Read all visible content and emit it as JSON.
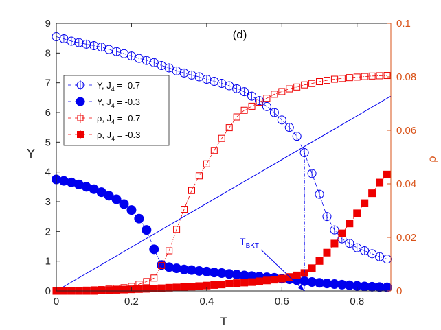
{
  "chart_data": {
    "type": "scatter",
    "panel_label": "(d)",
    "xlabel": "T",
    "ylabel_left": "Υ",
    "ylabel_right": "ρ",
    "xlim": [
      0,
      0.89
    ],
    "ylim_left": [
      0,
      9
    ],
    "ylim_right": [
      0,
      0.1
    ],
    "x_ticks": [
      0,
      0.2,
      0.4,
      0.6,
      0.8
    ],
    "x_tick_labels": [
      "0",
      "0.2",
      "0.4",
      "0.6",
      "0.8"
    ],
    "y_left_ticks": [
      0,
      1,
      2,
      3,
      4,
      5,
      6,
      7,
      8,
      9
    ],
    "y_left_tick_labels": [
      "0",
      "1",
      "2",
      "3",
      "4",
      "5",
      "6",
      "7",
      "8",
      "9"
    ],
    "y_right_ticks": [
      0,
      0.02,
      0.04,
      0.06,
      0.08,
      0.1
    ],
    "y_right_tick_labels": [
      "0",
      "0.02",
      "0.04",
      "0.06",
      "0.08",
      "0.1"
    ],
    "colors": {
      "blue": "#0000ee",
      "red": "#ee0000",
      "right_axis": "#d95319",
      "axis": "#262626"
    },
    "x": [
      0,
      0.02,
      0.04,
      0.06,
      0.08,
      0.1,
      0.12,
      0.14,
      0.16,
      0.18,
      0.2,
      0.22,
      0.24,
      0.26,
      0.28,
      0.3,
      0.32,
      0.34,
      0.36,
      0.38,
      0.4,
      0.42,
      0.44,
      0.46,
      0.48,
      0.5,
      0.52,
      0.54,
      0.56,
      0.58,
      0.6,
      0.62,
      0.64,
      0.66,
      0.68,
      0.7,
      0.72,
      0.74,
      0.76,
      0.78,
      0.8,
      0.82,
      0.84,
      0.86,
      0.88
    ],
    "series": [
      {
        "name": "upsilon_J4_m0.7",
        "legend_symbol": "Υ",
        "legend_suffix": ", J",
        "legend_sub": "4",
        "legend_value": " = -0.7",
        "axis": "left",
        "color": "#0000ee",
        "marker": "circle-open",
        "line": "dashdot",
        "values": [
          8.55,
          8.48,
          8.4,
          8.35,
          8.3,
          8.25,
          8.2,
          8.12,
          8.05,
          7.98,
          7.9,
          7.82,
          7.75,
          7.68,
          7.58,
          7.5,
          7.4,
          7.33,
          7.26,
          7.2,
          7.12,
          7.05,
          6.98,
          6.9,
          6.8,
          6.7,
          6.55,
          6.4,
          6.2,
          6.0,
          5.75,
          5.5,
          5.2,
          4.65,
          3.95,
          3.25,
          2.5,
          2.05,
          1.75,
          1.6,
          1.45,
          1.35,
          1.25,
          1.15,
          1.07
        ]
      },
      {
        "name": "upsilon_J4_m0.3",
        "legend_symbol": "Υ",
        "legend_suffix": ", J",
        "legend_sub": "4",
        "legend_value": " = -0.3",
        "axis": "left",
        "color": "#0000ee",
        "marker": "circle-filled",
        "line": "dashdot",
        "values": [
          3.75,
          3.7,
          3.65,
          3.58,
          3.5,
          3.42,
          3.32,
          3.2,
          3.08,
          2.92,
          2.72,
          2.43,
          2.05,
          1.4,
          0.87,
          0.8,
          0.76,
          0.72,
          0.7,
          0.67,
          0.65,
          0.62,
          0.6,
          0.57,
          0.55,
          0.52,
          0.5,
          0.48,
          0.46,
          0.44,
          0.41,
          0.39,
          0.36,
          0.33,
          0.3,
          0.27,
          0.25,
          0.23,
          0.21,
          0.19,
          0.17,
          0.15,
          0.14,
          0.13,
          0.12
        ]
      },
      {
        "name": "rho_J4_m0.7",
        "legend_symbol": "ρ",
        "legend_suffix": ", J",
        "legend_sub": "4",
        "legend_value": " = -0.7",
        "axis": "right",
        "color": "#ee0000",
        "marker": "square-open",
        "line": "dashdot",
        "values": [
          0.0001,
          0.0001,
          0.0002,
          0.0002,
          0.0003,
          0.0004,
          0.0005,
          0.0007,
          0.0009,
          0.0012,
          0.0017,
          0.0025,
          0.0035,
          0.0048,
          0.0095,
          0.015,
          0.023,
          0.0305,
          0.0375,
          0.043,
          0.0475,
          0.0525,
          0.057,
          0.061,
          0.065,
          0.0675,
          0.069,
          0.0705,
          0.072,
          0.0735,
          0.0745,
          0.0755,
          0.0762,
          0.077,
          0.0775,
          0.0782,
          0.0787,
          0.0791,
          0.0794,
          0.0797,
          0.0799,
          0.0801,
          0.0803,
          0.0804,
          0.0805
        ]
      },
      {
        "name": "rho_J4_m0.3",
        "legend_symbol": "ρ",
        "legend_suffix": ", J",
        "legend_sub": "4",
        "legend_value": " = -0.3",
        "axis": "right",
        "color": "#ee0000",
        "marker": "square-filled",
        "line": "dashdot",
        "values": [
          0,
          0,
          0,
          0,
          0,
          0,
          0.0002,
          0.0003,
          0.0004,
          0.0005,
          0.0006,
          0.0007,
          0.0008,
          0.0009,
          0.001,
          0.0012,
          0.0013,
          0.0015,
          0.0016,
          0.0018,
          0.002,
          0.0022,
          0.0024,
          0.0027,
          0.0029,
          0.0031,
          0.0033,
          0.0036,
          0.0039,
          0.0042,
          0.0046,
          0.0052,
          0.0058,
          0.0067,
          0.0085,
          0.0112,
          0.0143,
          0.0177,
          0.0215,
          0.0252,
          0.029,
          0.0328,
          0.0365,
          0.0405,
          0.0435
        ]
      }
    ],
    "reference_line": {
      "name": "2T/pi",
      "axis": "left",
      "x": [
        0,
        0.89
      ],
      "y": [
        0,
        6.55
      ],
      "color": "#0000ee"
    },
    "vertical_marker": {
      "axis": "left",
      "x": 0.66,
      "y_bottom": 0.0,
      "y_top": 4.65,
      "color": "#0000ee"
    },
    "annotation": {
      "text": "T",
      "sub": "BKT",
      "color": "#0000ee",
      "arrow_to_x": 0.66,
      "arrow_to_y": 0.0
    },
    "legend": {
      "placement": "upper-left"
    }
  }
}
